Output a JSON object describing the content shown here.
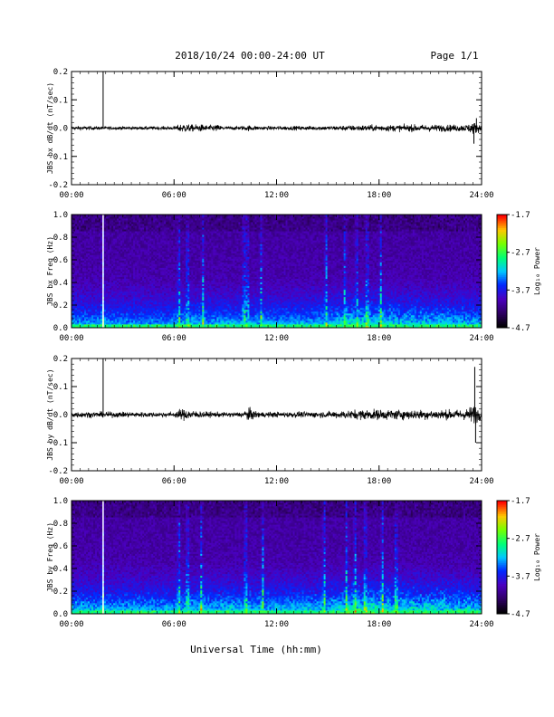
{
  "header": {
    "title": "2018/10/24  00:00-24:00 UT",
    "page": "Page 1/1"
  },
  "x_axis": {
    "label": "Universal Time (hh:mm)",
    "range_hours": [
      0,
      24
    ],
    "tick_hours": [
      0,
      6,
      12,
      18,
      24
    ],
    "tick_labels": [
      "00:00",
      "06:00",
      "12:00",
      "18:00",
      "24:00"
    ]
  },
  "chart_data": [
    {
      "type": "line",
      "ylabel": "JBS bx dB/dt (nT/sec)",
      "ylim": [
        -0.2,
        0.2
      ],
      "yticks": [
        -0.2,
        -0.1,
        0.0,
        0.1,
        0.2
      ],
      "ytick_labels": [
        "-0.2",
        "-0.1",
        "0.0",
        "0.1",
        "0.2"
      ],
      "noise_envelope": {
        "x": [
          0,
          2,
          6,
          6.5,
          7,
          7.5,
          8,
          8.5,
          9,
          10,
          10.5,
          11,
          12,
          15,
          17,
          18,
          20,
          22,
          23,
          23.5,
          24
        ],
        "y": [
          0.012,
          0.01,
          0.01,
          0.028,
          0.02,
          0.022,
          0.016,
          0.02,
          0.01,
          0.012,
          0.018,
          0.01,
          0.012,
          0.012,
          0.018,
          0.018,
          0.02,
          0.02,
          0.02,
          0.035,
          0.02
        ]
      },
      "spikes": [
        {
          "x": 1.85,
          "y": 0.2
        },
        {
          "x": 23.55,
          "y": -0.055
        },
        {
          "x": 23.7,
          "y": 0.035
        }
      ]
    },
    {
      "type": "heatmap",
      "ylabel": "JBS bx Freq (Hz)",
      "ylim": [
        0,
        1.0
      ],
      "yticks": [
        0.0,
        0.2,
        0.4,
        0.6,
        0.8,
        1.0
      ],
      "ytick_labels": [
        "0.0",
        "0.2",
        "0.4",
        "0.6",
        "0.8",
        "1.0"
      ],
      "colorbar": {
        "label": "Log₁₀ Power",
        "range": [
          -4.7,
          -1.7
        ],
        "ticks": [
          -1.7,
          -2.7,
          -3.7,
          -4.7
        ],
        "tick_labels": [
          "-1.7",
          "-2.7",
          "-3.7",
          "-4.7"
        ]
      },
      "activity": {
        "x": [
          0,
          2,
          6,
          7,
          8,
          10,
          12,
          15,
          16,
          17,
          18,
          20,
          22,
          24
        ],
        "level": [
          0.35,
          0.3,
          0.3,
          0.45,
          0.35,
          0.4,
          0.35,
          0.4,
          0.55,
          0.6,
          0.55,
          0.5,
          0.45,
          0.4
        ]
      },
      "vertical_streaks_hours": [
        1.85,
        6.3,
        6.8,
        7.7,
        10.1,
        10.3,
        11.1,
        14.9,
        16.0,
        16.7,
        17.3,
        18.1
      ],
      "gap_hours": 1.85
    },
    {
      "type": "line",
      "ylabel": "JBS by dB/dt (nT/sec)",
      "ylim": [
        -0.2,
        0.2
      ],
      "yticks": [
        -0.2,
        -0.1,
        0.0,
        0.1,
        0.2
      ],
      "ytick_labels": [
        "-0.2",
        "-0.1",
        "0.0",
        "0.1",
        "0.2"
      ],
      "noise_envelope": {
        "x": [
          0,
          2,
          6,
          6.5,
          7,
          8,
          9,
          10,
          10.3,
          11,
          12,
          15,
          17,
          18,
          20,
          22,
          23,
          23.6,
          24
        ],
        "y": [
          0.018,
          0.016,
          0.014,
          0.035,
          0.025,
          0.016,
          0.014,
          0.016,
          0.04,
          0.016,
          0.016,
          0.018,
          0.03,
          0.03,
          0.028,
          0.028,
          0.03,
          0.06,
          0.025
        ]
      },
      "spikes": [
        {
          "x": 1.85,
          "y": 0.2
        },
        {
          "x": 23.6,
          "y": 0.17
        },
        {
          "x": 23.65,
          "y": -0.1
        }
      ]
    },
    {
      "type": "heatmap",
      "ylabel": "JBS by Freq (Hz)",
      "ylim": [
        0,
        1.0
      ],
      "yticks": [
        0.0,
        0.2,
        0.4,
        0.6,
        0.8,
        1.0
      ],
      "ytick_labels": [
        "0.0",
        "0.2",
        "0.4",
        "0.6",
        "0.8",
        "1.0"
      ],
      "colorbar": {
        "label": "Log₁₀ Power",
        "range": [
          -4.7,
          -1.7
        ],
        "ticks": [
          -1.7,
          -2.7,
          -3.7,
          -4.7
        ],
        "tick_labels": [
          "-1.7",
          "-2.7",
          "-3.7",
          "-4.7"
        ]
      },
      "activity": {
        "x": [
          0,
          2,
          6,
          7,
          8,
          10,
          12,
          15,
          16,
          17,
          18,
          20,
          22,
          24
        ],
        "level": [
          0.45,
          0.4,
          0.4,
          0.5,
          0.45,
          0.5,
          0.45,
          0.5,
          0.6,
          0.7,
          0.65,
          0.6,
          0.55,
          0.5
        ]
      },
      "vertical_streaks_hours": [
        1.85,
        6.3,
        6.8,
        7.6,
        10.2,
        11.2,
        14.8,
        16.1,
        16.6,
        17.2,
        18.2,
        19.0
      ],
      "gap_hours": 1.85
    }
  ]
}
